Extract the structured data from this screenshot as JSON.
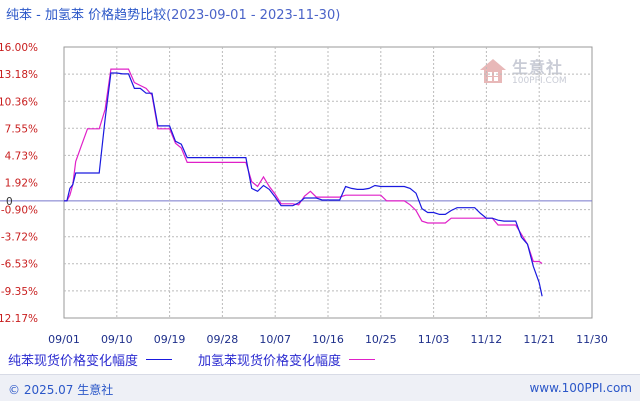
{
  "title": {
    "main": "纯苯 - 加氢苯 价格趋势比较",
    "range": "(2023-09-01 - 2023-11-30)"
  },
  "watermark": {
    "name": "生意社",
    "url": "100PPI.COM",
    "icon": "house-logo-icon"
  },
  "legend": {
    "series1": "纯苯现货价格变化幅度",
    "series2": "加氢苯现货价格变化幅度"
  },
  "footer": {
    "left": "© 2025.07 生意社",
    "right": "www.100PPI.com"
  },
  "colors": {
    "series1": "#1a1adf",
    "series2": "#e020c8",
    "zero_line": "#7777cc",
    "grid": "#bbbbbb"
  },
  "chart_data": {
    "type": "line",
    "title": "纯苯 - 加氢苯 价格趋势比较",
    "xlabel": "",
    "ylabel": "",
    "y_ticks": [
      "16.00%",
      "13.18%",
      "10.36%",
      "7.55%",
      "4.73%",
      "1.92%",
      "-0.90%",
      "-3.72%",
      "-6.53%",
      "-9.35%",
      "-12.17%"
    ],
    "y_tick_values": [
      16.0,
      13.18,
      10.36,
      7.55,
      4.73,
      1.92,
      -0.9,
      -3.72,
      -6.53,
      -9.35,
      -12.17
    ],
    "zero_label": "0",
    "ylim": [
      -12.17,
      16.0
    ],
    "x_ticks": [
      "09/01",
      "09/10",
      "09/19",
      "09/28",
      "10/07",
      "10/16",
      "10/25",
      "11/03",
      "11/12",
      "11/21",
      "11/30"
    ],
    "x_tick_days": [
      0,
      9,
      18,
      27,
      36,
      45,
      54,
      63,
      72,
      81,
      90
    ],
    "grid": true,
    "legend_position": "bottom-left",
    "series": [
      {
        "name": "纯苯现货价格变化幅度",
        "points": [
          [
            0,
            0.0
          ],
          [
            0.5,
            0.0
          ],
          [
            1,
            1.3
          ],
          [
            1.5,
            1.7
          ],
          [
            2,
            2.9
          ],
          [
            3,
            2.9
          ],
          [
            4,
            2.9
          ],
          [
            5,
            2.9
          ],
          [
            6,
            2.9
          ],
          [
            7,
            8.5
          ],
          [
            8,
            13.3
          ],
          [
            9,
            13.3
          ],
          [
            10,
            13.2
          ],
          [
            11,
            13.2
          ],
          [
            12,
            11.7
          ],
          [
            13,
            11.7
          ],
          [
            14,
            11.2
          ],
          [
            15,
            11.2
          ],
          [
            16,
            7.8
          ],
          [
            17,
            7.8
          ],
          [
            18,
            7.8
          ],
          [
            19,
            6.2
          ],
          [
            20,
            5.9
          ],
          [
            21,
            4.5
          ],
          [
            22,
            4.5
          ],
          [
            30,
            4.5
          ],
          [
            31,
            4.5
          ],
          [
            32,
            1.3
          ],
          [
            33,
            1.0
          ],
          [
            34,
            1.6
          ],
          [
            35,
            1.2
          ],
          [
            36,
            0.4
          ],
          [
            37,
            -0.5
          ],
          [
            38,
            -0.5
          ],
          [
            39,
            -0.5
          ],
          [
            40,
            -0.2
          ],
          [
            41,
            0.3
          ],
          [
            42,
            0.3
          ],
          [
            43,
            0.3
          ],
          [
            44,
            0.1
          ],
          [
            45,
            0.1
          ],
          [
            46,
            0.1
          ],
          [
            47,
            0.1
          ],
          [
            48,
            1.5
          ],
          [
            49,
            1.3
          ],
          [
            50,
            1.2
          ],
          [
            51,
            1.2
          ],
          [
            52,
            1.3
          ],
          [
            53,
            1.6
          ],
          [
            54,
            1.5
          ],
          [
            55,
            1.5
          ],
          [
            56,
            1.5
          ],
          [
            57,
            1.5
          ],
          [
            58,
            1.5
          ],
          [
            59,
            1.3
          ],
          [
            60,
            0.8
          ],
          [
            61,
            -0.8
          ],
          [
            62,
            -1.2
          ],
          [
            63,
            -1.2
          ],
          [
            64,
            -1.4
          ],
          [
            65,
            -1.4
          ],
          [
            66,
            -1.0
          ],
          [
            67,
            -0.7
          ],
          [
            68,
            -0.7
          ],
          [
            69,
            -0.7
          ],
          [
            70,
            -0.7
          ],
          [
            71,
            -1.3
          ],
          [
            72,
            -1.8
          ],
          [
            73,
            -1.8
          ],
          [
            74,
            -2.0
          ],
          [
            75,
            -2.1
          ],
          [
            76,
            -2.1
          ],
          [
            77,
            -2.1
          ],
          [
            78,
            -3.8
          ],
          [
            79,
            -4.5
          ],
          [
            80,
            -6.8
          ],
          [
            81,
            -8.5
          ],
          [
            81.5,
            -9.9
          ]
        ]
      },
      {
        "name": "加氢苯现货价格变化幅度",
        "points": [
          [
            0,
            0.0
          ],
          [
            0.5,
            0.0
          ],
          [
            1,
            0.6
          ],
          [
            1.5,
            1.7
          ],
          [
            2,
            4.1
          ],
          [
            3,
            5.8
          ],
          [
            4,
            7.5
          ],
          [
            5,
            7.5
          ],
          [
            6,
            7.5
          ],
          [
            7,
            9.5
          ],
          [
            8,
            13.7
          ],
          [
            9,
            13.7
          ],
          [
            10,
            13.7
          ],
          [
            11,
            13.7
          ],
          [
            12,
            12.3
          ],
          [
            13,
            12.0
          ],
          [
            14,
            11.7
          ],
          [
            15,
            11.0
          ],
          [
            16,
            7.5
          ],
          [
            17,
            7.5
          ],
          [
            18,
            7.5
          ],
          [
            19,
            6.0
          ],
          [
            20,
            5.5
          ],
          [
            21,
            4.0
          ],
          [
            22,
            4.0
          ],
          [
            28,
            4.0
          ],
          [
            29,
            4.0
          ],
          [
            30,
            4.0
          ],
          [
            31,
            4.0
          ],
          [
            32,
            2.0
          ],
          [
            33,
            1.5
          ],
          [
            34,
            2.5
          ],
          [
            35,
            1.5
          ],
          [
            36,
            0.7
          ],
          [
            37,
            -0.3
          ],
          [
            38,
            -0.3
          ],
          [
            39,
            -0.3
          ],
          [
            40,
            -0.4
          ],
          [
            41,
            0.5
          ],
          [
            42,
            1.0
          ],
          [
            43,
            0.4
          ],
          [
            44,
            0.4
          ],
          [
            45,
            0.4
          ],
          [
            46,
            0.4
          ],
          [
            47,
            0.4
          ],
          [
            48,
            0.6
          ],
          [
            49,
            0.6
          ],
          [
            50,
            0.6
          ],
          [
            51,
            0.6
          ],
          [
            52,
            0.6
          ],
          [
            53,
            0.6
          ],
          [
            54,
            0.6
          ],
          [
            55,
            0.0
          ],
          [
            56,
            0.0
          ],
          [
            57,
            0.0
          ],
          [
            58,
            0.0
          ],
          [
            59,
            -0.4
          ],
          [
            60,
            -1.0
          ],
          [
            61,
            -2.1
          ],
          [
            62,
            -2.3
          ],
          [
            63,
            -2.3
          ],
          [
            64,
            -2.3
          ],
          [
            65,
            -2.3
          ],
          [
            66,
            -1.8
          ],
          [
            67,
            -1.8
          ],
          [
            68,
            -1.8
          ],
          [
            69,
            -1.8
          ],
          [
            70,
            -1.8
          ],
          [
            71,
            -1.8
          ],
          [
            72,
            -1.8
          ],
          [
            73,
            -1.8
          ],
          [
            74,
            -2.5
          ],
          [
            75,
            -2.5
          ],
          [
            76,
            -2.5
          ],
          [
            77,
            -2.5
          ],
          [
            78,
            -3.5
          ],
          [
            79,
            -4.5
          ],
          [
            80,
            -6.3
          ],
          [
            81,
            -6.3
          ],
          [
            81.5,
            -6.5
          ]
        ]
      }
    ]
  }
}
